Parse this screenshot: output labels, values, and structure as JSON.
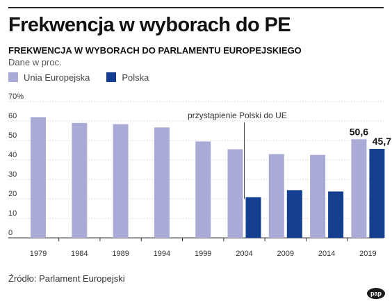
{
  "header": {
    "title": "Frekwencja w wyborach do PE",
    "subtitle": "FREKWENCJA W WYBORACH DO PARLAMENTU EUROPEJSKIEGO",
    "units_note": "Dane w proc."
  },
  "legend": [
    {
      "label": "Unia Europejska",
      "color": "#a9abd6"
    },
    {
      "label": "Polska",
      "color": "#143e8f"
    }
  ],
  "chart_data": {
    "type": "bar",
    "categories": [
      "1979",
      "1984",
      "1989",
      "1994",
      "1999",
      "2004",
      "2009",
      "2014",
      "2019"
    ],
    "series": [
      {
        "name": "Unia Europejska",
        "color": "#a9abd6",
        "values": [
          62.0,
          59.0,
          58.4,
          56.7,
          49.5,
          45.5,
          43.0,
          42.6,
          50.6
        ]
      },
      {
        "name": "Polska",
        "color": "#143e8f",
        "values": [
          null,
          null,
          null,
          null,
          null,
          20.9,
          24.5,
          23.8,
          45.7
        ]
      }
    ],
    "ylim": [
      0,
      70
    ],
    "yticks": [
      0,
      10,
      20,
      30,
      40,
      50,
      60,
      70
    ],
    "ytick_labels": [
      "0",
      "10",
      "20",
      "30",
      "40",
      "50",
      "60",
      "70%"
    ],
    "grid": true,
    "legend_position": "top-left",
    "annotations": [
      {
        "text": "przystąpienie Polski do UE",
        "category": "2004"
      }
    ],
    "data_labels": [
      {
        "series": "Unia Europejska",
        "category": "2019",
        "text": "50,6"
      },
      {
        "series": "Polska",
        "category": "2019",
        "text": "45,7"
      }
    ]
  },
  "source": "Źródło: Parlament Europejski",
  "logo": "pap"
}
